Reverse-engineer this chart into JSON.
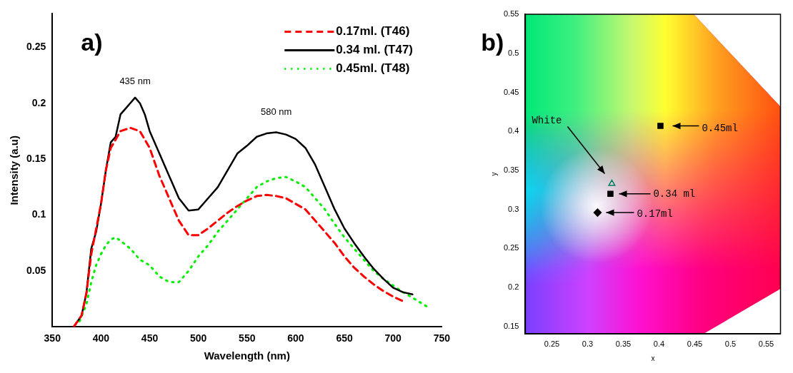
{
  "chart_data": [
    {
      "type": "line",
      "title": "a)",
      "xlabel": "Wavelength (nm)",
      "ylabel": "Intensity (a.u)",
      "xlim": [
        350,
        750
      ],
      "ylim": [
        0,
        0.28
      ],
      "xticks": [
        350,
        400,
        450,
        500,
        550,
        600,
        650,
        700,
        750
      ],
      "yticks": [
        0.05,
        0.1,
        0.15,
        0.2,
        0.25
      ],
      "legend": "top right",
      "annotations": [
        "435 nm",
        "580 nm"
      ],
      "series": [
        {
          "name": "0.17ml. (T46)",
          "color": "#ff0000",
          "line_style": "dashed",
          "x": [
            372,
            380,
            385,
            390,
            400,
            405,
            410,
            420,
            430,
            440,
            450,
            460,
            470,
            480,
            490,
            500,
            510,
            520,
            530,
            540,
            550,
            560,
            570,
            580,
            590,
            600,
            610,
            620,
            630,
            640,
            650,
            660,
            670,
            680,
            690,
            700,
            710
          ],
          "values": [
            0,
            0.01,
            0.03,
            0.065,
            0.11,
            0.14,
            0.16,
            0.175,
            0.178,
            0.175,
            0.16,
            0.135,
            0.115,
            0.095,
            0.082,
            0.082,
            0.088,
            0.095,
            0.102,
            0.108,
            0.113,
            0.117,
            0.118,
            0.117,
            0.115,
            0.11,
            0.105,
            0.095,
            0.085,
            0.075,
            0.063,
            0.053,
            0.045,
            0.038,
            0.032,
            0.027,
            0.023
          ]
        },
        {
          "name": "0.34 ml. (T47)",
          "color": "#000000",
          "line_style": "solid",
          "x": [
            372,
            380,
            385,
            390,
            395,
            400,
            405,
            410,
            415,
            420,
            425,
            430,
            435,
            440,
            445,
            450,
            460,
            470,
            480,
            490,
            500,
            510,
            520,
            530,
            540,
            550,
            560,
            570,
            580,
            590,
            600,
            610,
            620,
            630,
            640,
            650,
            660,
            670,
            680,
            690,
            700,
            710,
            720
          ],
          "values": [
            0,
            0.01,
            0.03,
            0.07,
            0.085,
            0.11,
            0.14,
            0.165,
            0.17,
            0.19,
            0.195,
            0.2,
            0.205,
            0.2,
            0.19,
            0.175,
            0.155,
            0.135,
            0.115,
            0.104,
            0.105,
            0.115,
            0.125,
            0.14,
            0.155,
            0.162,
            0.17,
            0.173,
            0.174,
            0.172,
            0.168,
            0.16,
            0.145,
            0.125,
            0.105,
            0.088,
            0.075,
            0.063,
            0.052,
            0.043,
            0.035,
            0.031,
            0.029
          ]
        },
        {
          "name": "0.45ml. (T48)",
          "color": "#00ee00",
          "line_style": "dotted",
          "x": [
            378,
            385,
            390,
            395,
            400,
            405,
            410,
            415,
            420,
            430,
            440,
            450,
            460,
            470,
            480,
            490,
            500,
            510,
            520,
            530,
            540,
            550,
            560,
            570,
            580,
            590,
            600,
            610,
            620,
            630,
            640,
            650,
            660,
            670,
            680,
            690,
            700,
            710,
            720,
            735
          ],
          "values": [
            0.005,
            0.02,
            0.04,
            0.055,
            0.065,
            0.073,
            0.078,
            0.08,
            0.077,
            0.07,
            0.06,
            0.055,
            0.045,
            0.04,
            0.04,
            0.05,
            0.063,
            0.073,
            0.085,
            0.095,
            0.105,
            0.115,
            0.125,
            0.13,
            0.133,
            0.134,
            0.13,
            0.125,
            0.115,
            0.105,
            0.092,
            0.08,
            0.07,
            0.06,
            0.05,
            0.043,
            0.037,
            0.031,
            0.026,
            0.018
          ]
        }
      ]
    },
    {
      "type": "scatter",
      "title": "b)",
      "xlabel": "x",
      "ylabel": "y",
      "xlim": [
        0.213,
        0.57
      ],
      "ylim": [
        0.141,
        0.55
      ],
      "xticks": [
        0.25,
        0.3,
        0.35,
        0.4,
        0.45,
        0.5,
        0.55
      ],
      "yticks": [
        0.15,
        0.2,
        0.25,
        0.3,
        0.35,
        0.4,
        0.45,
        0.5,
        0.55
      ],
      "annotations": [
        "White",
        "0.45ml",
        "0.34 ml",
        "0.17ml"
      ],
      "series": [
        {
          "color": "#008060",
          "marker": "triangle",
          "x": [
            0.334
          ],
          "values": [
            0.333
          ]
        },
        {
          "color": "#000000",
          "marker": "square",
          "x": [
            0.402
          ],
          "values": [
            0.407
          ]
        },
        {
          "color": "#000000",
          "marker": "square",
          "x": [
            0.332
          ],
          "values": [
            0.32
          ]
        },
        {
          "color": "#000000",
          "marker": "diamond",
          "x": [
            0.314
          ],
          "values": [
            0.296
          ]
        }
      ]
    }
  ]
}
